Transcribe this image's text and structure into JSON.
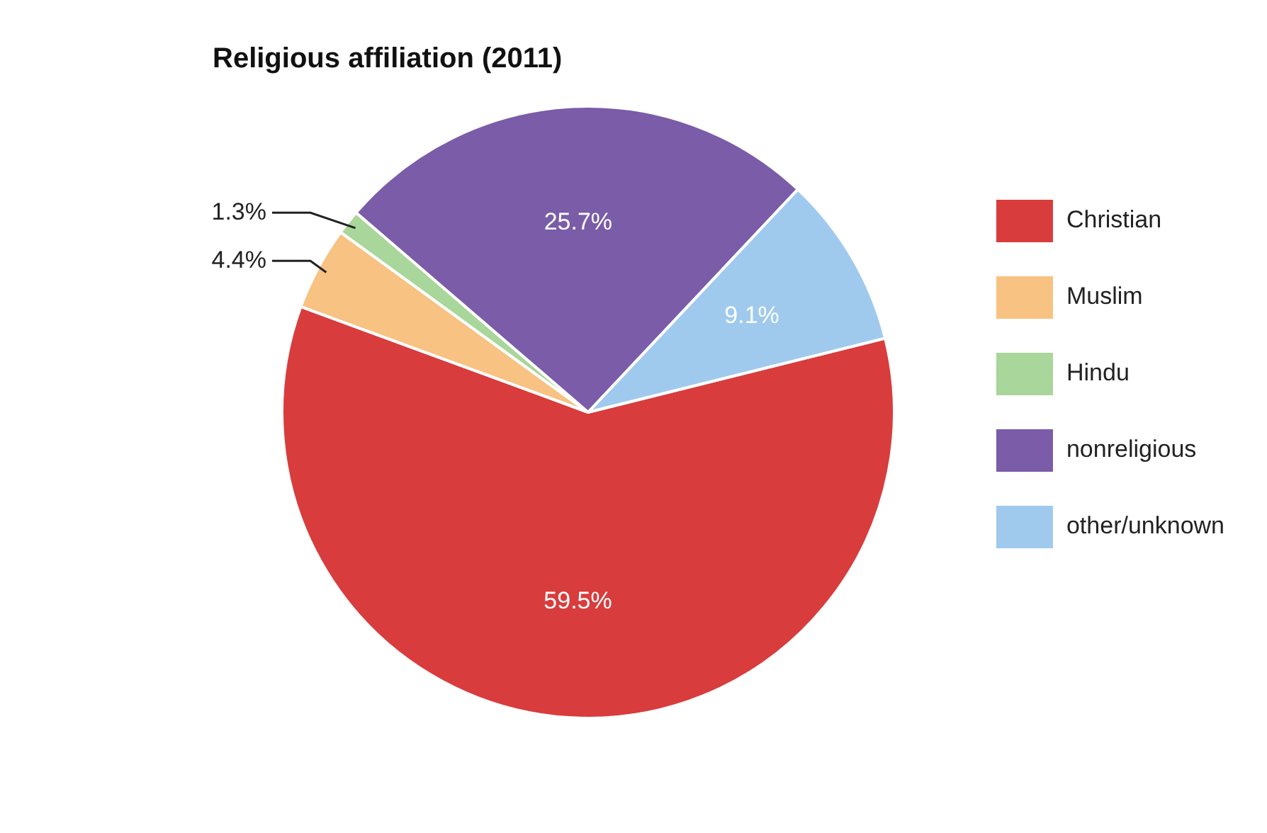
{
  "chart_data": {
    "type": "pie",
    "title": "Religious affiliation (2011)",
    "categories": [
      "Christian",
      "Muslim",
      "Hindu",
      "nonreligious",
      "other/unknown"
    ],
    "values": [
      59.5,
      4.4,
      1.3,
      25.7,
      9.1
    ],
    "colors": [
      "#d93c3c",
      "#f8c283",
      "#a9d69b",
      "#7a5ca8",
      "#9fcaee"
    ],
    "value_labels": [
      "59.5%",
      "4.4%",
      "1.3%",
      "25.7%",
      "9.1%"
    ],
    "legend": "right"
  }
}
